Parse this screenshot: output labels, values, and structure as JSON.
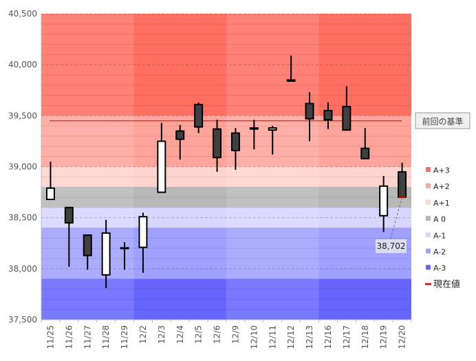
{
  "chart_data": {
    "type": "candlestick",
    "title": "",
    "xlabel": "",
    "ylabel": "",
    "ylim": [
      37500,
      40500
    ],
    "yticks": [
      37500,
      38000,
      38500,
      39000,
      39500,
      40000,
      40500
    ],
    "ytick_labels": [
      "37,500",
      "38,000",
      "38,500",
      "39,000",
      "39,500",
      "40,000",
      "40,500"
    ],
    "categories": [
      "11/25",
      "11/26",
      "11/27",
      "11/28",
      "11/29",
      "12/2",
      "12/3",
      "12/4",
      "12/5",
      "12/6",
      "12/9",
      "12/10",
      "12/11",
      "12/12",
      "12/13",
      "12/16",
      "12/17",
      "12/18",
      "12/19",
      "12/20"
    ],
    "ohlc": [
      {
        "o": 38680,
        "h": 39050,
        "l": 38680,
        "c": 38790
      },
      {
        "o": 38600,
        "h": 38600,
        "l": 38020,
        "c": 38450
      },
      {
        "o": 38330,
        "h": 38330,
        "l": 37990,
        "c": 38130
      },
      {
        "o": 37940,
        "h": 38480,
        "l": 37810,
        "c": 38350
      },
      {
        "o": 38200,
        "h": 38260,
        "l": 37990,
        "c": 38205
      },
      {
        "o": 38210,
        "h": 38550,
        "l": 37960,
        "c": 38510
      },
      {
        "o": 38750,
        "h": 39430,
        "l": 38750,
        "c": 39250
      },
      {
        "o": 39350,
        "h": 39410,
        "l": 39070,
        "c": 39270
      },
      {
        "o": 39610,
        "h": 39630,
        "l": 39330,
        "c": 39390
      },
      {
        "o": 39370,
        "h": 39460,
        "l": 38950,
        "c": 39090
      },
      {
        "o": 39330,
        "h": 39380,
        "l": 38970,
        "c": 39160
      },
      {
        "o": 39380,
        "h": 39460,
        "l": 39170,
        "c": 39370
      },
      {
        "o": 39360,
        "h": 39400,
        "l": 39120,
        "c": 39380
      },
      {
        "o": 39850,
        "h": 40090,
        "l": 39840,
        "c": 39840
      },
      {
        "o": 39620,
        "h": 39730,
        "l": 39250,
        "c": 39470
      },
      {
        "o": 39550,
        "h": 39630,
        "l": 39370,
        "c": 39460
      },
      {
        "o": 39590,
        "h": 39790,
        "l": 39360,
        "c": 39360
      },
      {
        "o": 39180,
        "h": 39380,
        "l": 39080,
        "c": 39080
      },
      {
        "o": 38520,
        "h": 38910,
        "l": 38360,
        "c": 38810
      },
      {
        "o": 38950,
        "h": 39040,
        "l": 38700,
        "c": 38702
      }
    ],
    "week_groups": [
      [
        0,
        4
      ],
      [
        5,
        9
      ],
      [
        10,
        14
      ],
      [
        15,
        19
      ]
    ],
    "bands": [
      {
        "name": "A+3",
        "from": 39500,
        "to": 40500,
        "color": "#ff6f61"
      },
      {
        "name": "A+2",
        "from": 39000,
        "to": 39500,
        "color": "#ffa49a"
      },
      {
        "name": "A+1",
        "from": 38800,
        "to": 39000,
        "color": "#ffd3ce"
      },
      {
        "name": "A 0",
        "from": 38600,
        "to": 38800,
        "color": "#b8b8b8"
      },
      {
        "name": "A-1",
        "from": 38400,
        "to": 38600,
        "color": "#d6d6ff"
      },
      {
        "name": "A-2",
        "from": 37900,
        "to": 38400,
        "color": "#a0a0ff"
      },
      {
        "name": "A-3",
        "from": 37500,
        "to": 37900,
        "color": "#6666ff"
      }
    ],
    "reference_line": {
      "label": "前回の基準",
      "value": 39450,
      "color": "#cc0000"
    },
    "current_value": {
      "label": "現在値",
      "value": 38702,
      "display": "38,702",
      "color": "#cc0000"
    },
    "legend": [
      "A+3",
      "A+2",
      "A+1",
      "A 0",
      "A-1",
      "A-2",
      "A-3",
      "現在値"
    ],
    "legend_position": "right",
    "grid": true
  }
}
